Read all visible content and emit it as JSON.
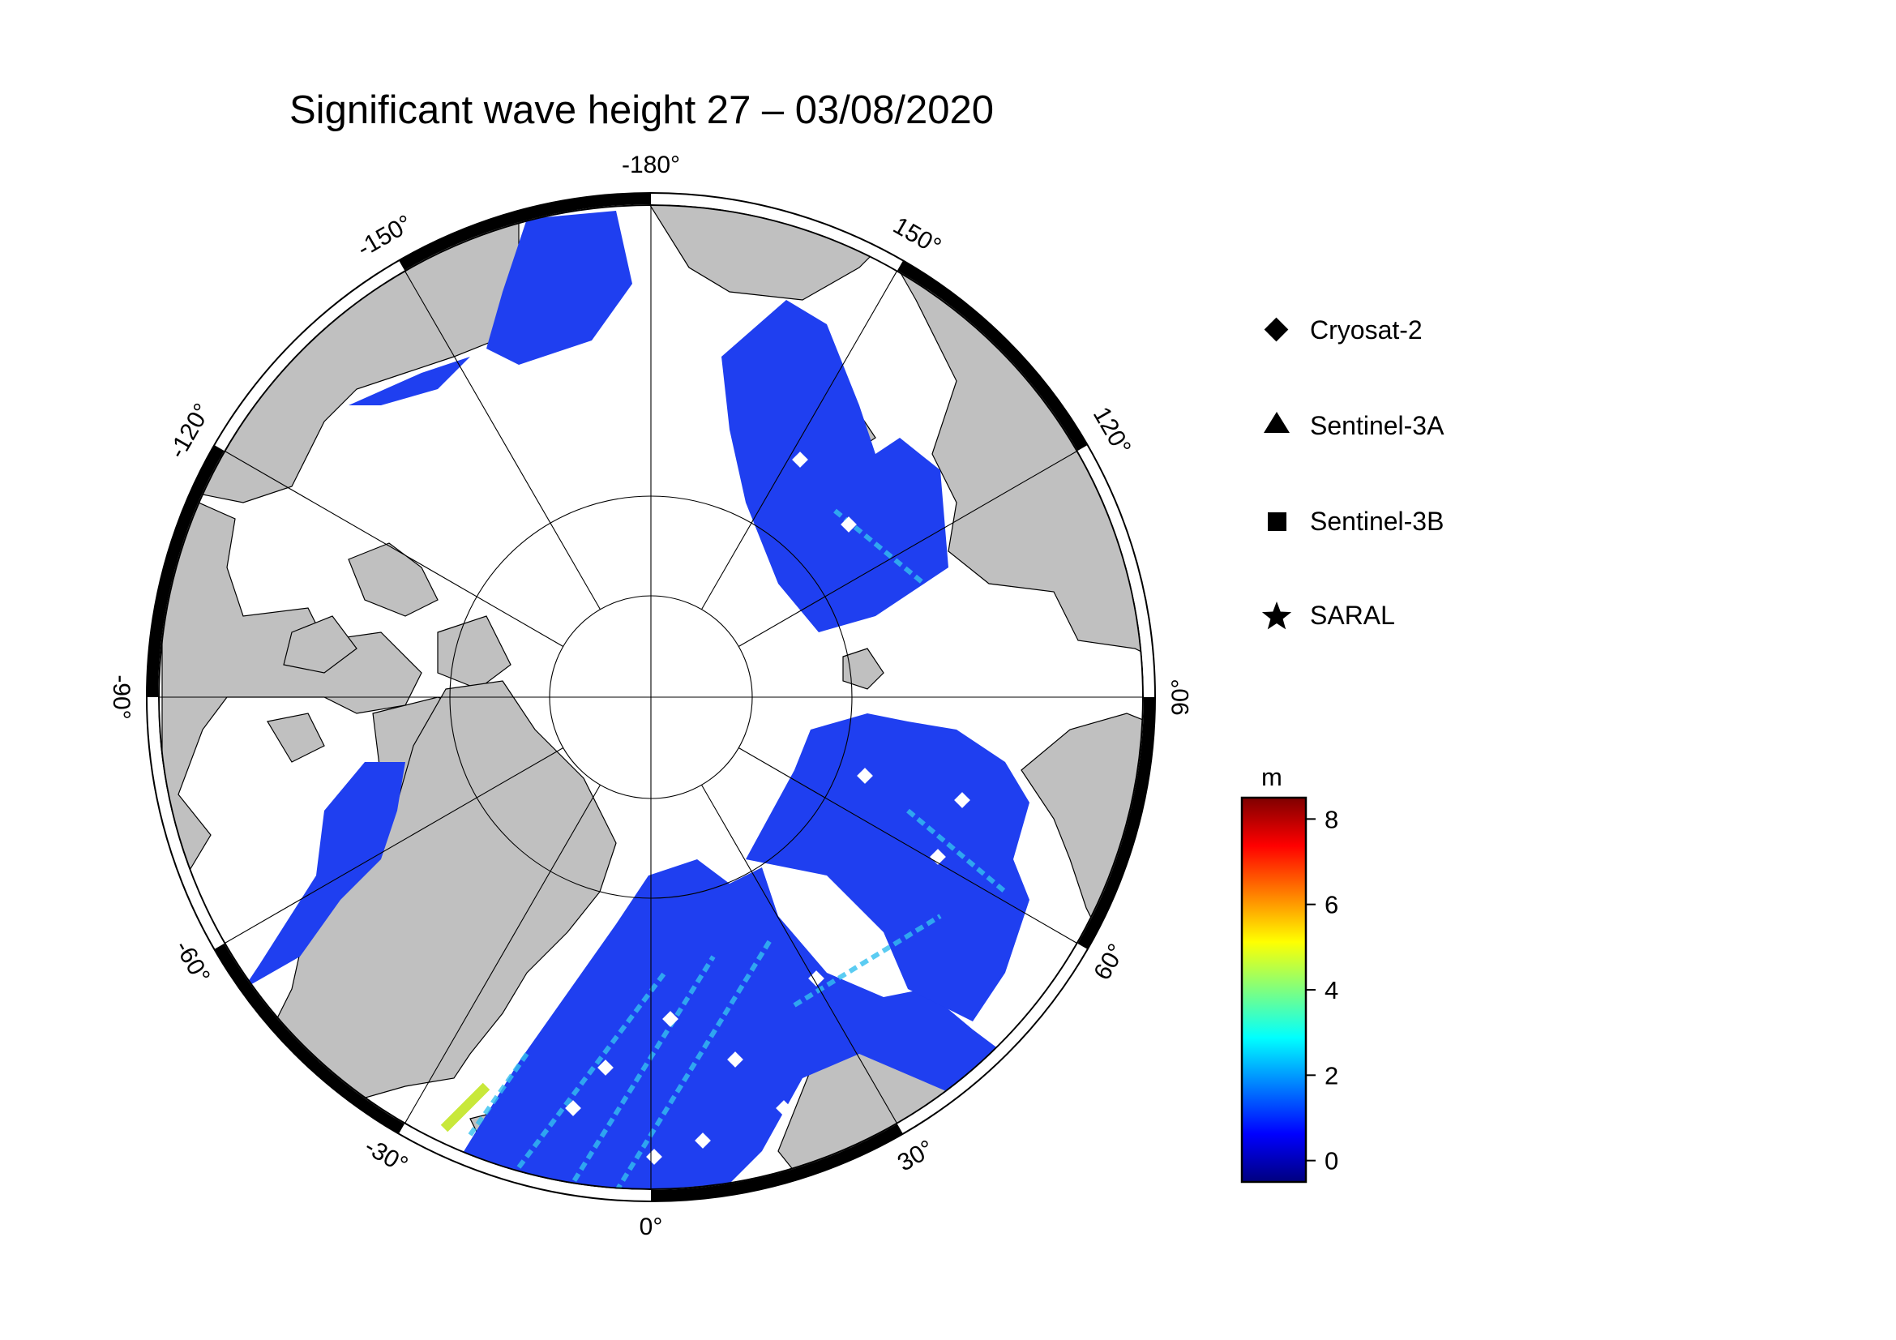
{
  "title": "Significant wave height 27 – 03/08/2020",
  "longitude_labels": [
    {
      "text": "-180°",
      "lon": 180
    },
    {
      "text": "150°",
      "lon": 150
    },
    {
      "text": "120°",
      "lon": 120
    },
    {
      "text": "90°",
      "lon": 90
    },
    {
      "text": "60°",
      "lon": 60
    },
    {
      "text": "30°",
      "lon": 30
    },
    {
      "text": "0°",
      "lon": 0
    },
    {
      "text": "-30°",
      "lon": -30
    },
    {
      "text": "-60°",
      "lon": -60
    },
    {
      "text": "-90°",
      "lon": -90
    },
    {
      "text": "-120°",
      "lon": -120
    },
    {
      "text": "-150°",
      "lon": -150
    }
  ],
  "legend": {
    "items": [
      {
        "label": "Cryosat-2",
        "icon": "diamond"
      },
      {
        "label": "Sentinel-3A",
        "icon": "triangle"
      },
      {
        "label": "Sentinel-3B",
        "icon": "square"
      },
      {
        "label": "SARAL",
        "icon": "star"
      }
    ]
  },
  "colorbar": {
    "unit": "m",
    "range": [
      -0.5,
      8.5
    ],
    "ticks": [
      {
        "value": 0,
        "label": "0"
      },
      {
        "value": 2,
        "label": "2"
      },
      {
        "value": 4,
        "label": "4"
      },
      {
        "value": 6,
        "label": "6"
      },
      {
        "value": 8,
        "label": "8"
      }
    ],
    "colors": [
      "#00007f",
      "#0000ff",
      "#007fff",
      "#00ffff",
      "#7fff7f",
      "#ffff00",
      "#ff7f00",
      "#ff0000",
      "#7f0000"
    ]
  },
  "map_colors": {
    "land": "#c0c0c0",
    "ice": "#ffffff",
    "wave_low": "#1f3ff0",
    "wave_high": "#33c0f0"
  }
}
